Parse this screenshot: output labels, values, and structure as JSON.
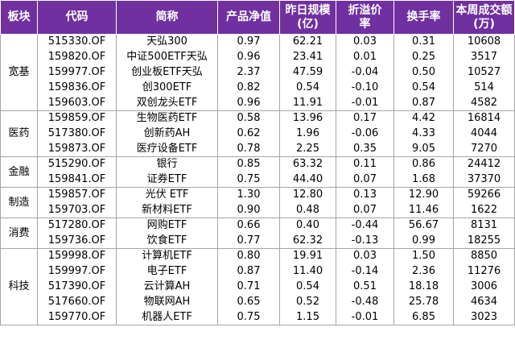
{
  "headers": {
    "sector": "板块",
    "code": "代码",
    "name": "简称",
    "nav": "产品净值",
    "scale": "昨日规模\n(亿)",
    "premium": "折溢价\n率",
    "turnover": "换手率",
    "volume": "本周成交额\n(万)"
  },
  "groups": [
    {
      "sector": "宽基",
      "rows": [
        {
          "code": "515330.OF",
          "name": "天弘300",
          "nav": "0.97",
          "scale": "62.21",
          "premium": "0.03",
          "turnover": "0.31",
          "volume": "10608"
        },
        {
          "code": "159820.OF",
          "name": "中证500ETF天弘",
          "nav": "0.96",
          "scale": "23.41",
          "premium": "0.01",
          "turnover": "0.25",
          "volume": "3517"
        },
        {
          "code": "159977.OF",
          "name": "创业板ETF天弘",
          "nav": "2.37",
          "scale": "47.59",
          "premium": "-0.04",
          "turnover": "0.50",
          "volume": "10527"
        },
        {
          "code": "159836.OF",
          "name": "创300ETF",
          "nav": "0.82",
          "scale": "0.54",
          "premium": "-0.10",
          "turnover": "0.54",
          "volume": "514"
        },
        {
          "code": "159603.OF",
          "name": "双创龙头ETF",
          "nav": "0.96",
          "scale": "11.91",
          "premium": "-0.01",
          "turnover": "0.87",
          "volume": "4582"
        }
      ]
    },
    {
      "sector": "医药",
      "rows": [
        {
          "code": "159859.OF",
          "name": "生物医药ETF",
          "nav": "0.58",
          "scale": "13.96",
          "premium": "0.17",
          "turnover": "4.42",
          "volume": "16814"
        },
        {
          "code": "517380.OF",
          "name": "创新药AH",
          "nav": "0.62",
          "scale": "1.96",
          "premium": "-0.06",
          "turnover": "4.33",
          "volume": "4044"
        },
        {
          "code": "159873.OF",
          "name": "医疗设备ETF",
          "nav": "0.78",
          "scale": "2.25",
          "premium": "0.35",
          "turnover": "9.05",
          "volume": "7270"
        }
      ]
    },
    {
      "sector": "金融",
      "rows": [
        {
          "code": "515290.OF",
          "name": "银行",
          "nav": "0.85",
          "scale": "63.32",
          "premium": "0.11",
          "turnover": "0.86",
          "volume": "24412"
        },
        {
          "code": "159841.OF",
          "name": "证券ETF",
          "nav": "0.75",
          "scale": "44.40",
          "premium": "0.07",
          "turnover": "1.68",
          "volume": "37370"
        }
      ]
    },
    {
      "sector": "制造",
      "rows": [
        {
          "code": "159857.OF",
          "name": "光伏 ETF",
          "nav": "1.30",
          "scale": "12.80",
          "premium": "0.13",
          "turnover": "12.90",
          "volume": "59266"
        },
        {
          "code": "159703.OF",
          "name": "新材料ETF",
          "nav": "0.90",
          "scale": "0.48",
          "premium": "0.07",
          "turnover": "11.46",
          "volume": "1622"
        }
      ]
    },
    {
      "sector": "消费",
      "rows": [
        {
          "code": "517280.OF",
          "name": "网购ETF",
          "nav": "0.66",
          "scale": "0.40",
          "premium": "-0.44",
          "turnover": "56.67",
          "volume": "8131"
        },
        {
          "code": "159736.OF",
          "name": "饮食ETF",
          "nav": "0.77",
          "scale": "62.32",
          "premium": "-0.13",
          "turnover": "0.99",
          "volume": "18255"
        }
      ]
    },
    {
      "sector": "科技",
      "rows": [
        {
          "code": "159998.OF",
          "name": "计算机ETF",
          "nav": "0.80",
          "scale": "19.91",
          "premium": "0.03",
          "turnover": "1.50",
          "volume": "8850"
        },
        {
          "code": "159997.OF",
          "name": "电子ETF",
          "nav": "0.87",
          "scale": "11.40",
          "premium": "-0.14",
          "turnover": "2.36",
          "volume": "11276"
        },
        {
          "code": "517390.OF",
          "name": "云计算AH",
          "nav": "0.71",
          "scale": "0.54",
          "premium": "0.51",
          "turnover": "18.18",
          "volume": "3006"
        },
        {
          "code": "517660.OF",
          "name": "物联网AH",
          "nav": "0.65",
          "scale": "0.52",
          "premium": "-0.48",
          "turnover": "25.78",
          "volume": "4634"
        },
        {
          "code": "159770.OF",
          "name": "机器人ETF",
          "nav": "0.75",
          "scale": "1.15",
          "premium": "-0.01",
          "turnover": "6.85",
          "volume": "3023"
        }
      ]
    }
  ]
}
